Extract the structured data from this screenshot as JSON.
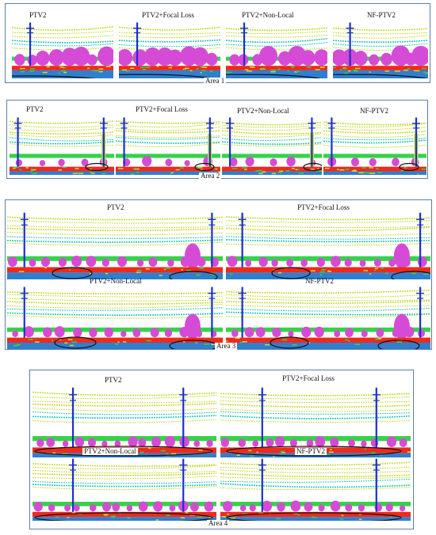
{
  "areas": [
    {
      "label": "Area 1",
      "panels": [
        {
          "title": "PTV2"
        },
        {
          "title": "PTV2+Focal Loss"
        },
        {
          "title": "PTV2+Non-Local"
        },
        {
          "title": "NF-PTV2"
        }
      ]
    },
    {
      "label": "Area 2",
      "panels": [
        {
          "title": "PTV2"
        },
        {
          "title": "PTV2+Focal Loss"
        },
        {
          "title": "PTV2+Non-Local"
        },
        {
          "title": "NF-PTV2"
        }
      ]
    },
    {
      "label": "Area 3",
      "panels": [
        {
          "title": "PTV2"
        },
        {
          "title": "PTV2+Focal Loss"
        },
        {
          "title": "PTV2+Non-Local"
        },
        {
          "title": "NF-PTV2"
        }
      ]
    },
    {
      "label": "Area 4",
      "panels": [
        {
          "title": "PTV2"
        },
        {
          "title": "PTV2+Focal Loss"
        },
        {
          "title": "PTV2+Non-Local"
        },
        {
          "title": "NF-PTV2"
        }
      ]
    }
  ],
  "colors": {
    "wire": "#c8dc3c",
    "wire_cyan": "#29c7b8",
    "vegetation": "#35d24a",
    "tree": "#d64bd6",
    "tower": "#1c2fd0",
    "ground": "#ee2a1a",
    "road": "#2f7fd0",
    "highlight": "#111111"
  }
}
